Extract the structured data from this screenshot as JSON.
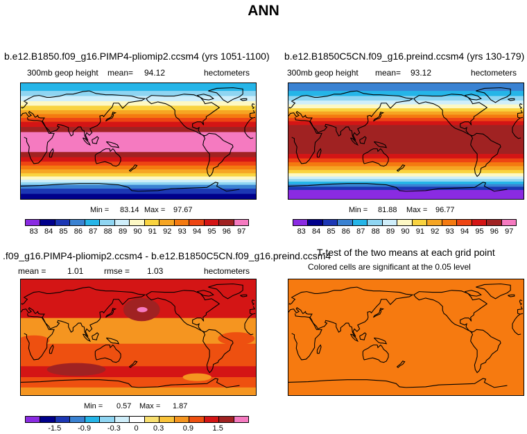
{
  "figure": {
    "title": "ANN"
  },
  "colors": {
    "scale_main": [
      "#8a2be2",
      "#00008b",
      "#1c37b4",
      "#3a82d2",
      "#25b5e8",
      "#8fd5f2",
      "#cfeefa",
      "#fdf8c4",
      "#f9d33f",
      "#f6a523",
      "#f47a10",
      "#ee4513",
      "#d41515",
      "#a02222",
      "#f57ac0"
    ],
    "scale_diff": [
      "#8a2be2",
      "#00008b",
      "#1c37b4",
      "#3a82d2",
      "#25b5e8",
      "#8fd5f2",
      "#cfeefa",
      "#ffffff",
      "#f9e070",
      "#f9c33a",
      "#f59520",
      "#ee5010",
      "#d41515",
      "#a02222",
      "#f57ac0"
    ],
    "ttest_fill": "#f67a10",
    "coast": "#000000"
  },
  "chart_data": [
    {
      "type": "heatmap",
      "panel": "top-left",
      "title": "b.e12.B1850.f09_g16.PIMP4-pliomip2.ccsm4 (yrs 1051-1100)",
      "variable": "300mb geop height",
      "mean_label": "mean=",
      "mean": "94.12",
      "units": "hectometers",
      "min_label": "Min =",
      "min": "83.14",
      "max_label": "Max =",
      "max": "97.67",
      "levels": [
        "83",
        "84",
        "85",
        "86",
        "87",
        "88",
        "89",
        "90",
        "91",
        "92",
        "93",
        "94",
        "95",
        "96",
        "97"
      ],
      "field_bands": [
        {
          "lat_top": 90,
          "lat_bot": 78,
          "level": 4
        },
        {
          "lat_top": 78,
          "lat_bot": 70,
          "level": 5
        },
        {
          "lat_top": 70,
          "lat_bot": 62,
          "level": 6
        },
        {
          "lat_top": 62,
          "lat_bot": 55,
          "level": 7
        },
        {
          "lat_top": 55,
          "lat_bot": 48,
          "level": 8
        },
        {
          "lat_top": 48,
          "lat_bot": 42,
          "level": 9
        },
        {
          "lat_top": 42,
          "lat_bot": 36,
          "level": 10
        },
        {
          "lat_top": 36,
          "lat_bot": 30,
          "level": 11
        },
        {
          "lat_top": 30,
          "lat_bot": 22,
          "level": 12
        },
        {
          "lat_top": 22,
          "lat_bot": 14,
          "level": 13
        },
        {
          "lat_top": 14,
          "lat_bot": -17,
          "level": 14
        },
        {
          "lat_top": -17,
          "lat_bot": -25,
          "level": 13
        },
        {
          "lat_top": -25,
          "lat_bot": -32,
          "level": 12
        },
        {
          "lat_top": -32,
          "lat_bot": -38,
          "level": 11
        },
        {
          "lat_top": -38,
          "lat_bot": -44,
          "level": 10
        },
        {
          "lat_top": -44,
          "lat_bot": -50,
          "level": 9
        },
        {
          "lat_top": -50,
          "lat_bot": -55,
          "level": 8
        },
        {
          "lat_top": -55,
          "lat_bot": -60,
          "level": 7
        },
        {
          "lat_top": -60,
          "lat_bot": -64,
          "level": 6
        },
        {
          "lat_top": -64,
          "lat_bot": -68,
          "level": 5
        },
        {
          "lat_top": -68,
          "lat_bot": -74,
          "level": 3
        },
        {
          "lat_top": -74,
          "lat_bot": -82,
          "level": 2
        },
        {
          "lat_top": -82,
          "lat_bot": -90,
          "level": 1
        }
      ]
    },
    {
      "type": "heatmap",
      "panel": "top-right",
      "title": "b.e12.B1850C5CN.f09_g16.preind.ccsm4 (yrs 130-179)",
      "variable": "300mb geop height",
      "mean_label": "mean=",
      "mean": "93.12",
      "units": "hectometers",
      "min_label": "Min =",
      "min": "81.88",
      "max_label": "Max =",
      "max": "96.77",
      "levels": [
        "83",
        "84",
        "85",
        "86",
        "87",
        "88",
        "89",
        "90",
        "91",
        "92",
        "93",
        "94",
        "95",
        "96",
        "97"
      ],
      "field_bands": [
        {
          "lat_top": 90,
          "lat_bot": 78,
          "level": 3
        },
        {
          "lat_top": 78,
          "lat_bot": 70,
          "level": 4
        },
        {
          "lat_top": 70,
          "lat_bot": 63,
          "level": 5
        },
        {
          "lat_top": 63,
          "lat_bot": 57,
          "level": 6
        },
        {
          "lat_top": 57,
          "lat_bot": 51,
          "level": 7
        },
        {
          "lat_top": 51,
          "lat_bot": 46,
          "level": 8
        },
        {
          "lat_top": 46,
          "lat_bot": 41,
          "level": 9
        },
        {
          "lat_top": 41,
          "lat_bot": 36,
          "level": 10
        },
        {
          "lat_top": 36,
          "lat_bot": 31,
          "level": 11
        },
        {
          "lat_top": 31,
          "lat_bot": 25,
          "level": 12
        },
        {
          "lat_top": 25,
          "lat_bot": -20,
          "level": 13
        },
        {
          "lat_top": -20,
          "lat_bot": -27,
          "level": 12
        },
        {
          "lat_top": -27,
          "lat_bot": -33,
          "level": 11
        },
        {
          "lat_top": -33,
          "lat_bot": -39,
          "level": 10
        },
        {
          "lat_top": -39,
          "lat_bot": -45,
          "level": 9
        },
        {
          "lat_top": -45,
          "lat_bot": -50,
          "level": 8
        },
        {
          "lat_top": -50,
          "lat_bot": -55,
          "level": 7
        },
        {
          "lat_top": -55,
          "lat_bot": -59,
          "level": 6
        },
        {
          "lat_top": -59,
          "lat_bot": -63,
          "level": 5
        },
        {
          "lat_top": -63,
          "lat_bot": -67,
          "level": 4
        },
        {
          "lat_top": -67,
          "lat_bot": -71,
          "level": 3
        },
        {
          "lat_top": -71,
          "lat_bot": -76,
          "level": 2
        },
        {
          "lat_top": -76,
          "lat_bot": -90,
          "level": 0
        }
      ]
    },
    {
      "type": "heatmap",
      "panel": "bottom-left",
      "title": ".f09_g16.PIMP4-pliomip2.ccsm4 - b.e12.B1850C5CN.f09_g16.preind.ccsm4",
      "mean_label": "mean =",
      "mean": "1.01",
      "rmse_label": "rmse =",
      "rmse": "1.03",
      "units": "hectometers",
      "min_label": "Min =",
      "min": "0.57",
      "max_label": "Max =",
      "max": "1.87",
      "tick_labels": [
        "-1.5",
        "-0.9",
        "-0.3",
        "0",
        "0.3",
        "0.9",
        "1.5"
      ],
      "field_bands": [
        {
          "lat_top": 90,
          "lat_bot": 30,
          "level": 12
        },
        {
          "lat_top": 30,
          "lat_bot": -10,
          "level": 10
        },
        {
          "lat_top": -10,
          "lat_bot": -45,
          "level": 11
        },
        {
          "lat_top": -45,
          "lat_bot": -62,
          "level": 12
        },
        {
          "lat_top": -62,
          "lat_bot": -78,
          "level": 11
        },
        {
          "lat_top": -78,
          "lat_bot": -90,
          "level": 10
        }
      ]
    },
    {
      "type": "heatmap",
      "panel": "bottom-right",
      "title": "T-test of the two means at each grid point",
      "subtitle": "Colored cells are significant at the 0.05 level"
    }
  ]
}
